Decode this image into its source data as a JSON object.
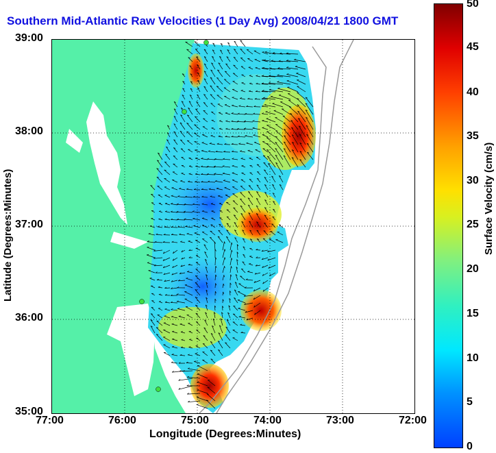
{
  "title": "Southern Mid-Atlantic Raw Velocities (1 Day Avg) 2008/04/21 1800 GMT",
  "x_axis": {
    "label": "Longitude (Degrees:Minutes)",
    "ticks": [
      "77:00",
      "76:00",
      "75:00",
      "74:00",
      "73:00",
      "72:00"
    ]
  },
  "y_axis": {
    "label": "Latitude (Degrees:Minutes)",
    "ticks": [
      "39:00",
      "38:00",
      "37:00",
      "36:00",
      "35:00"
    ]
  },
  "colorbar": {
    "label": "Surface Velocity (cm/s)",
    "ticks": [
      "50",
      "45",
      "40",
      "35",
      "30",
      "25",
      "20",
      "15",
      "10",
      "5",
      "0"
    ],
    "range": [
      0,
      50
    ]
  },
  "colors": {
    "land": "#55f0a8",
    "water": "#ffffff",
    "title": "#1010e0"
  },
  "map": {
    "lon_range": [
      -77,
      -72
    ],
    "lat_range": [
      35,
      39
    ],
    "grid": true,
    "arrows": "black velocity vectors over colored speed field"
  }
}
